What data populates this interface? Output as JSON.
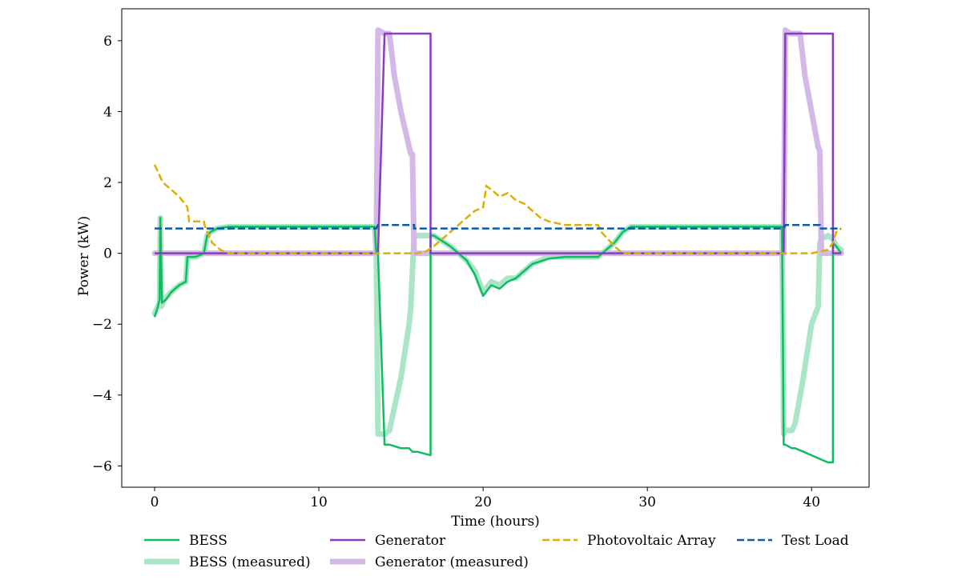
{
  "chart_data": {
    "type": "line",
    "title": "",
    "xlabel": "Time (hours)",
    "ylabel": "Power (kW)",
    "xlim": [
      -2,
      43.5
    ],
    "ylim": [
      -6.6,
      6.9
    ],
    "xticks": [
      0,
      10,
      20,
      30,
      40
    ],
    "yticks": [
      -6,
      -4,
      -2,
      0,
      2,
      4,
      6
    ],
    "ytick_labels": [
      "−6",
      "−4",
      "−2",
      "0",
      "2",
      "4",
      "6"
    ],
    "grid": false,
    "legend_position": "bottom",
    "series": [
      {
        "name": "BESS (measured)",
        "color": "#abe5c8",
        "style": "solid-thick",
        "x": [
          0,
          0.2,
          0.3,
          0.35,
          0.4,
          0.6,
          1,
          1.5,
          1.9,
          2.0,
          2.1,
          2.5,
          3.0,
          3.2,
          3.4,
          3.8,
          4.5,
          6,
          10,
          13.4,
          13.5,
          13.6,
          14.0,
          14.3,
          15.0,
          15.5,
          15.6,
          15.8,
          16.2,
          16.8,
          17.0,
          18,
          19,
          19.5,
          20,
          20.5,
          21,
          21.5,
          22,
          23,
          24,
          25,
          27,
          28,
          28.5,
          29,
          30,
          38.2,
          38.3,
          38.4,
          38.8,
          39.0,
          39.5,
          40.0,
          40.4,
          40.5,
          40.6,
          41.0,
          41.3,
          41.5,
          41.8
        ],
        "values": [
          -1.7,
          -1.5,
          -1.4,
          1.0,
          -1.5,
          -1.3,
          -1.1,
          -0.9,
          -0.8,
          -0.1,
          -0.1,
          -0.1,
          0.0,
          0.5,
          0.6,
          0.7,
          0.75,
          0.75,
          0.75,
          0.75,
          0.0,
          -5.1,
          -5.1,
          -5.0,
          -3.5,
          -2.0,
          -1.5,
          0.5,
          0.5,
          0.5,
          0.5,
          0.2,
          -0.2,
          -0.5,
          -1.1,
          -0.8,
          -0.9,
          -0.7,
          -0.7,
          -0.3,
          -0.1,
          -0.1,
          -0.1,
          0.3,
          0.6,
          0.75,
          0.75,
          0.75,
          -5.1,
          -5.0,
          -5.0,
          -4.8,
          -3.5,
          -2.0,
          -1.5,
          0.3,
          0.4,
          0.5,
          0.4,
          0.2,
          0.1
        ]
      },
      {
        "name": "Generator (measured)",
        "color": "#d4b8e8",
        "style": "solid-thick",
        "x": [
          0,
          13.4,
          13.5,
          13.6,
          14.0,
          14.3,
          14.6,
          15.0,
          15.5,
          15.6,
          15.7,
          15.8,
          16.0,
          38.3,
          38.4,
          38.7,
          39.0,
          39.3,
          39.6,
          40.0,
          40.4,
          40.5,
          40.6,
          41.0,
          41.8
        ],
        "values": [
          0.0,
          0.0,
          0.0,
          6.3,
          6.2,
          6.2,
          5.0,
          4.0,
          3.0,
          2.8,
          2.8,
          0.0,
          0.0,
          0.0,
          6.3,
          6.2,
          6.2,
          6.2,
          5.0,
          4.0,
          3.0,
          2.9,
          0.0,
          0.0,
          0.0
        ]
      },
      {
        "name": "BESS",
        "color": "#0fbd60",
        "style": "solid",
        "x": [
          0,
          0.2,
          0.3,
          0.35,
          0.45,
          0.7,
          1.0,
          1.5,
          1.9,
          2.0,
          2.1,
          2.5,
          3.0,
          3.2,
          3.4,
          3.8,
          4.5,
          6,
          10,
          13.4,
          13.5,
          13.6,
          14.0,
          14.3,
          15.0,
          15.5,
          15.7,
          16.0,
          16.8,
          16.8,
          17.0,
          18,
          19,
          19.5,
          20,
          20.5,
          21,
          21.5,
          22,
          23,
          24,
          25,
          27,
          28,
          28.5,
          29,
          30,
          38.2,
          38.3,
          38.4,
          38.8,
          39.0,
          39.5,
          40.0,
          40.5,
          41.0,
          41.3,
          41.3,
          41.5,
          41.8
        ],
        "values": [
          -1.8,
          -1.5,
          -1.3,
          1.0,
          -1.4,
          -1.3,
          -1.1,
          -0.9,
          -0.8,
          -0.1,
          -0.1,
          -0.1,
          0.0,
          0.5,
          0.6,
          0.7,
          0.75,
          0.75,
          0.75,
          0.75,
          0.0,
          0.0,
          -5.4,
          -5.4,
          -5.5,
          -5.5,
          -5.6,
          -5.6,
          -5.7,
          0.5,
          0.5,
          0.2,
          -0.2,
          -0.6,
          -1.2,
          -0.9,
          -1.0,
          -0.8,
          -0.7,
          -0.3,
          -0.15,
          -0.1,
          -0.1,
          0.3,
          0.6,
          0.75,
          0.75,
          0.75,
          -5.4,
          -5.4,
          -5.5,
          -5.5,
          -5.6,
          -5.7,
          -5.8,
          -5.9,
          -5.9,
          0.3,
          0.2,
          0.0
        ]
      },
      {
        "name": "Generator",
        "color": "#8a3bc2",
        "style": "solid",
        "x": [
          0,
          13.4,
          13.5,
          13.6,
          14.0,
          16.8,
          16.8,
          38.2,
          38.3,
          38.4,
          41.3,
          41.3,
          41.8
        ],
        "values": [
          0.0,
          0.0,
          0.0,
          0.0,
          6.2,
          6.2,
          0.0,
          0.0,
          0.0,
          6.2,
          6.2,
          0.0,
          0.0
        ]
      },
      {
        "name": "Photovoltaic Array",
        "color": "#dfae00",
        "style": "dashed",
        "x": [
          0,
          0.3,
          0.5,
          1.0,
          1.5,
          2.0,
          2.1,
          3.0,
          3.1,
          3.5,
          4.0,
          4.5,
          10,
          16,
          16.5,
          17,
          17.5,
          18,
          18.5,
          19,
          19.5,
          20,
          20.2,
          20.5,
          21,
          21.5,
          22,
          22.5,
          23,
          23.5,
          24,
          25,
          27,
          27.2,
          27.6,
          28,
          28.5,
          29,
          38,
          40,
          41.0,
          41.3,
          41.5,
          41.8
        ],
        "values": [
          2.5,
          2.2,
          2.0,
          1.8,
          1.6,
          1.3,
          0.9,
          0.9,
          0.7,
          0.3,
          0.1,
          0.0,
          0.0,
          0.0,
          0.05,
          0.2,
          0.4,
          0.6,
          0.8,
          1.0,
          1.2,
          1.3,
          1.9,
          1.8,
          1.6,
          1.7,
          1.5,
          1.4,
          1.2,
          1.0,
          0.9,
          0.8,
          0.8,
          0.6,
          0.4,
          0.2,
          0.0,
          0.0,
          0.0,
          0.0,
          0.1,
          0.3,
          0.6,
          0.7
        ]
      },
      {
        "name": "Test Load",
        "color": "#0d5aa7",
        "style": "dashed",
        "x": [
          0,
          13.5,
          13.6,
          15.8,
          15.8,
          38.3,
          38.4,
          40.5,
          40.5,
          41.8
        ],
        "values": [
          0.7,
          0.7,
          0.8,
          0.8,
          0.7,
          0.7,
          0.8,
          0.8,
          0.7,
          0.7
        ]
      }
    ],
    "legend": [
      {
        "label": "BESS",
        "series_index": 2
      },
      {
        "label": "Generator",
        "series_index": 3
      },
      {
        "label": "Photovoltaic Array",
        "series_index": 4
      },
      {
        "label": "Test Load",
        "series_index": 5
      },
      {
        "label": "BESS (measured)",
        "series_index": 0
      },
      {
        "label": "Generator (measured)",
        "series_index": 1
      }
    ]
  }
}
